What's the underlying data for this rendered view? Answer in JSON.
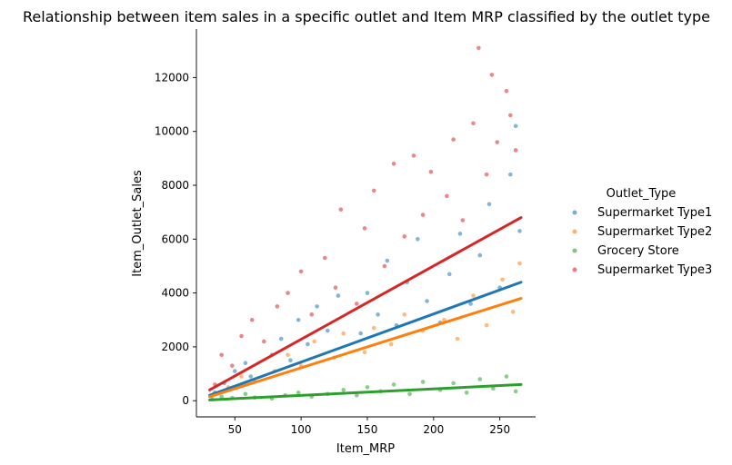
{
  "chart_data": {
    "type": "scatter",
    "title": "Relationship between item sales in a specific outlet and Item MRP classified by the outlet type",
    "xlabel": "Item_MRP",
    "ylabel": "Item_Outlet_Sales",
    "xlim": [
      21,
      277
    ],
    "ylim": [
      -600,
      13800
    ],
    "xticks": [
      50,
      100,
      150,
      200,
      250
    ],
    "yticks": [
      0,
      2000,
      4000,
      6000,
      8000,
      10000,
      12000
    ],
    "grid": false,
    "legend": {
      "title": "Outlet_Type",
      "position": "right"
    },
    "series": [
      {
        "name": "Supermarket Type1",
        "color": "#1f77b4",
        "fit_line": [
          [
            31,
            200
          ],
          [
            266,
            4400
          ]
        ],
        "points": [
          [
            35,
            300
          ],
          [
            42,
            650
          ],
          [
            50,
            1100
          ],
          [
            58,
            1400
          ],
          [
            62,
            900
          ],
          [
            78,
            1700
          ],
          [
            85,
            2300
          ],
          [
            92,
            1500
          ],
          [
            98,
            3000
          ],
          [
            105,
            2100
          ],
          [
            112,
            3500
          ],
          [
            120,
            2600
          ],
          [
            128,
            3900
          ],
          [
            145,
            2500
          ],
          [
            150,
            4000
          ],
          [
            158,
            3200
          ],
          [
            165,
            5200
          ],
          [
            172,
            2800
          ],
          [
            180,
            4400
          ],
          [
            188,
            6000
          ],
          [
            195,
            3700
          ],
          [
            205,
            2900
          ],
          [
            212,
            4700
          ],
          [
            220,
            6200
          ],
          [
            228,
            3600
          ],
          [
            235,
            5400
          ],
          [
            242,
            7300
          ],
          [
            250,
            4200
          ],
          [
            258,
            8400
          ],
          [
            262,
            10200
          ],
          [
            265,
            6300
          ]
        ]
      },
      {
        "name": "Supermarket Type2",
        "color": "#ff7f0e",
        "fit_line": [
          [
            31,
            150
          ],
          [
            266,
            3800
          ]
        ],
        "points": [
          [
            34,
            250
          ],
          [
            45,
            500
          ],
          [
            55,
            900
          ],
          [
            65,
            700
          ],
          [
            80,
            1100
          ],
          [
            90,
            1700
          ],
          [
            100,
            1300
          ],
          [
            110,
            2200
          ],
          [
            125,
            1600
          ],
          [
            132,
            2500
          ],
          [
            148,
            1800
          ],
          [
            155,
            2700
          ],
          [
            168,
            2100
          ],
          [
            178,
            3200
          ],
          [
            192,
            2600
          ],
          [
            208,
            3000
          ],
          [
            218,
            2300
          ],
          [
            230,
            3900
          ],
          [
            240,
            2800
          ],
          [
            252,
            4500
          ],
          [
            260,
            3300
          ],
          [
            265,
            5100
          ]
        ]
      },
      {
        "name": "Grocery Store",
        "color": "#2ca02c",
        "fit_line": [
          [
            31,
            30
          ],
          [
            266,
            600
          ]
        ],
        "points": [
          [
            33,
            50
          ],
          [
            40,
            150
          ],
          [
            48,
            100
          ],
          [
            58,
            250
          ],
          [
            65,
            120
          ],
          [
            78,
            80
          ],
          [
            88,
            200
          ],
          [
            98,
            300
          ],
          [
            108,
            150
          ],
          [
            120,
            250
          ],
          [
            132,
            400
          ],
          [
            142,
            200
          ],
          [
            150,
            500
          ],
          [
            160,
            350
          ],
          [
            170,
            600
          ],
          [
            182,
            250
          ],
          [
            192,
            700
          ],
          [
            205,
            400
          ],
          [
            215,
            650
          ],
          [
            225,
            300
          ],
          [
            235,
            800
          ],
          [
            245,
            450
          ],
          [
            255,
            900
          ],
          [
            262,
            350
          ]
        ]
      },
      {
        "name": "Supermarket Type3",
        "color": "#d62728",
        "fit_line": [
          [
            31,
            400
          ],
          [
            266,
            6800
          ]
        ],
        "points": [
          [
            35,
            600
          ],
          [
            40,
            1700
          ],
          [
            48,
            1300
          ],
          [
            55,
            2400
          ],
          [
            63,
            3000
          ],
          [
            72,
            2200
          ],
          [
            82,
            3500
          ],
          [
            90,
            4000
          ],
          [
            100,
            4800
          ],
          [
            108,
            3200
          ],
          [
            118,
            5300
          ],
          [
            126,
            4200
          ],
          [
            130,
            7100
          ],
          [
            142,
            3600
          ],
          [
            148,
            6400
          ],
          [
            155,
            7800
          ],
          [
            163,
            5000
          ],
          [
            170,
            8800
          ],
          [
            178,
            6100
          ],
          [
            185,
            9100
          ],
          [
            192,
            6900
          ],
          [
            198,
            8500
          ],
          [
            210,
            7600
          ],
          [
            215,
            9700
          ],
          [
            222,
            6700
          ],
          [
            230,
            10300
          ],
          [
            234,
            13100
          ],
          [
            240,
            8400
          ],
          [
            244,
            12100
          ],
          [
            248,
            9600
          ],
          [
            255,
            11500
          ],
          [
            258,
            10600
          ],
          [
            262,
            9300
          ]
        ]
      }
    ]
  }
}
